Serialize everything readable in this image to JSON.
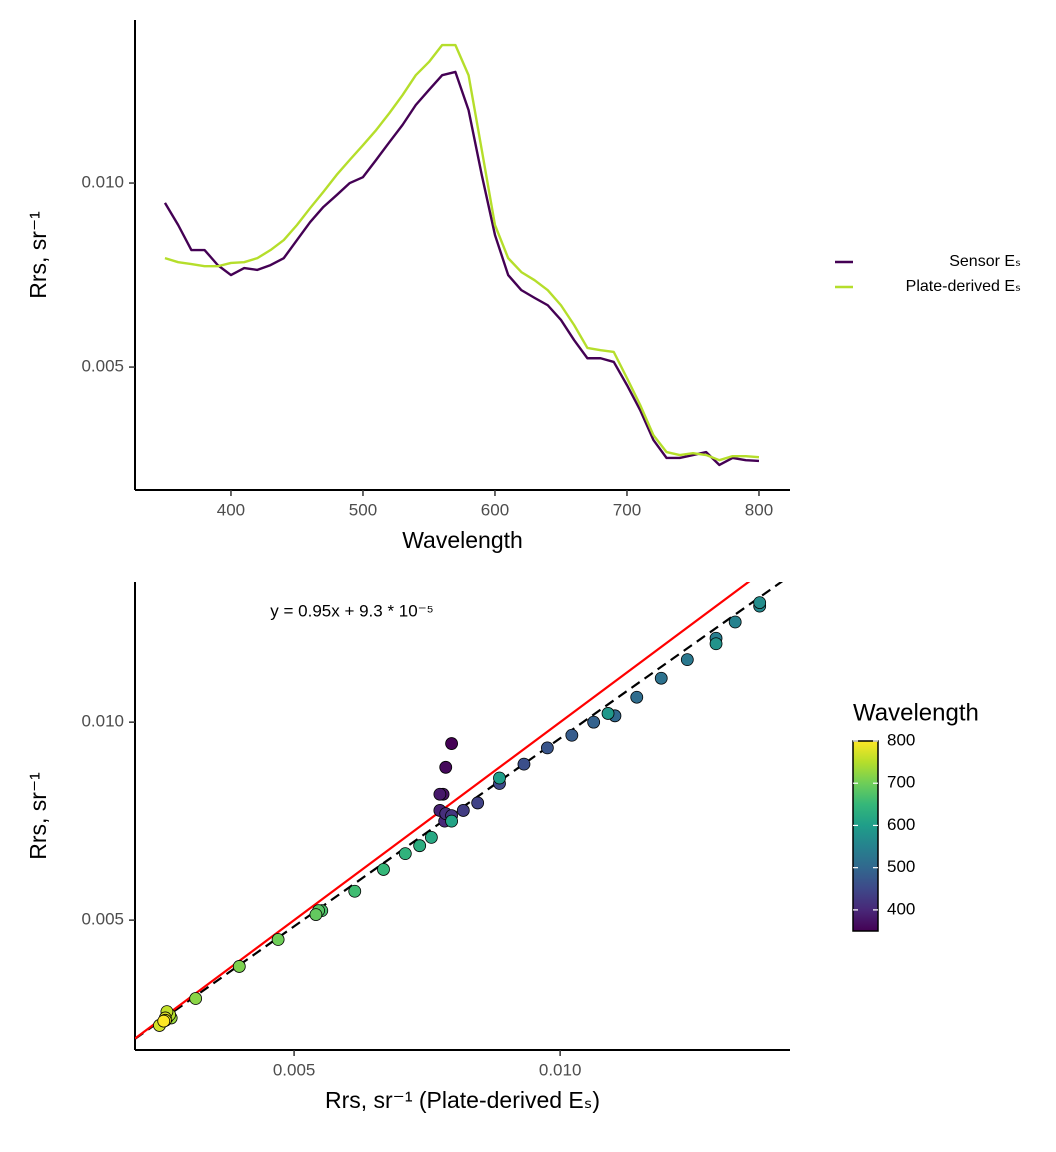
{
  "chart_data": [
    {
      "type": "line",
      "x_label": "Wavelength",
      "y_label": "Rrs, sr⁻¹",
      "x": [
        350,
        360,
        370,
        380,
        390,
        400,
        410,
        420,
        430,
        440,
        450,
        460,
        470,
        480,
        490,
        500,
        510,
        520,
        530,
        540,
        550,
        560,
        570,
        580,
        590,
        600,
        610,
        620,
        630,
        640,
        650,
        660,
        670,
        680,
        690,
        700,
        710,
        720,
        730,
        740,
        750,
        760,
        770,
        780,
        790,
        800
      ],
      "series": [
        {
          "name": "Sensor Eₛ",
          "color": "#440154",
          "values": [
            0.00946,
            0.00886,
            0.00818,
            0.00818,
            0.00777,
            0.0075,
            0.00769,
            0.00764,
            0.00777,
            0.00796,
            0.00845,
            0.00894,
            0.00935,
            0.00967,
            0.01,
            0.01016,
            0.01063,
            0.01111,
            0.01158,
            0.01212,
            0.01253,
            0.01293,
            0.01302,
            0.01198,
            0.01022,
            0.00859,
            0.0075,
            0.00709,
            0.00688,
            0.00668,
            0.00628,
            0.00573,
            0.00524,
            0.00524,
            0.00514,
            0.00451,
            0.00383,
            0.00302,
            0.00253,
            0.00253,
            0.00261,
            0.00269,
            0.00234,
            0.00253,
            0.00247,
            0.00245
          ]
        },
        {
          "name": "Plate-derived Eₛ",
          "color": "#b5de2b",
          "values": [
            0.00796,
            0.00785,
            0.0078,
            0.00774,
            0.00774,
            0.00783,
            0.00785,
            0.00796,
            0.00818,
            0.00845,
            0.00886,
            0.00932,
            0.00976,
            0.01022,
            0.01063,
            0.01103,
            0.01144,
            0.0119,
            0.01239,
            0.01293,
            0.01329,
            0.01375,
            0.01375,
            0.01293,
            0.0109,
            0.00886,
            0.00796,
            0.00758,
            0.00736,
            0.00709,
            0.00668,
            0.00614,
            0.00552,
            0.00546,
            0.00541,
            0.0047,
            0.00397,
            0.00315,
            0.00269,
            0.00261,
            0.00266,
            0.00261,
            0.00247,
            0.00258,
            0.00258,
            0.00255
          ]
        }
      ],
      "xlim": [
        327.3,
        823.5
      ],
      "xticks": [
        400,
        500,
        600,
        700,
        800
      ],
      "ylim": [
        0.00166,
        0.01443
      ],
      "yticks": [
        0.005,
        {
          "value": 0.01,
          "label": "0.010"
        }
      ],
      "legend": "right"
    },
    {
      "type": "scatter",
      "annotation": "y = 0.95x + 9.3 * 10⁻⁵",
      "x_label": "Rrs, sr⁻¹ (Plate-derived Eₛ)",
      "y_label": "Rrs, sr⁻¹",
      "x": [
        0.00796,
        0.00785,
        0.0078,
        0.00774,
        0.00774,
        0.00783,
        0.00785,
        0.00796,
        0.00818,
        0.00845,
        0.00886,
        0.00932,
        0.00976,
        0.01022,
        0.01063,
        0.01103,
        0.01144,
        0.0119,
        0.01239,
        0.01293,
        0.01329,
        0.01375,
        0.01375,
        0.01293,
        0.0109,
        0.00886,
        0.00796,
        0.00758,
        0.00736,
        0.00709,
        0.00668,
        0.00614,
        0.00552,
        0.00546,
        0.00541,
        0.0047,
        0.00397,
        0.00315,
        0.00269,
        0.00261,
        0.00266,
        0.00261,
        0.00247,
        0.00258,
        0.00258,
        0.00255
      ],
      "y": [
        0.00946,
        0.00886,
        0.00818,
        0.00818,
        0.00777,
        0.0075,
        0.00769,
        0.00764,
        0.00777,
        0.00796,
        0.00845,
        0.00894,
        0.00935,
        0.00967,
        0.01,
        0.01016,
        0.01063,
        0.01111,
        0.01158,
        0.01212,
        0.01253,
        0.01293,
        0.01302,
        0.01198,
        0.01022,
        0.00859,
        0.0075,
        0.00709,
        0.00688,
        0.00668,
        0.00628,
        0.00573,
        0.00524,
        0.00524,
        0.00514,
        0.00451,
        0.00383,
        0.00302,
        0.00253,
        0.00253,
        0.00261,
        0.00269,
        0.00234,
        0.00253,
        0.00247,
        0.00245
      ],
      "color_values": [
        350,
        360,
        370,
        380,
        390,
        400,
        410,
        420,
        430,
        440,
        450,
        460,
        470,
        480,
        490,
        500,
        510,
        520,
        530,
        540,
        550,
        560,
        570,
        580,
        590,
        600,
        610,
        620,
        630,
        640,
        650,
        660,
        670,
        680,
        690,
        700,
        710,
        720,
        730,
        740,
        750,
        760,
        770,
        780,
        790,
        800
      ],
      "colorbar": {
        "title": "Wavelength",
        "lim": [
          350,
          800
        ],
        "ticks": [
          400,
          500,
          600,
          700,
          800
        ],
        "colors": [
          "#440154",
          "#482878",
          "#3e4989",
          "#31688e",
          "#26828e",
          "#1f9e89",
          "#35b779",
          "#6ece58",
          "#b5de2b",
          "#fde725"
        ]
      },
      "fit_line": {
        "slope": 0.95,
        "intercept": 9.3e-05,
        "color": "#000000"
      },
      "reference_line": {
        "slope": 1,
        "intercept": 0,
        "color": "#ff0000"
      },
      "xlim": [
        0.00201,
        0.01432
      ],
      "xticks": [
        0.005,
        {
          "value": 0.01,
          "label": "0.010"
        }
      ],
      "ylim": [
        0.00172,
        0.01354
      ],
      "yticks": [
        0.005,
        {
          "value": 0.01,
          "label": "0.010"
        }
      ]
    }
  ]
}
